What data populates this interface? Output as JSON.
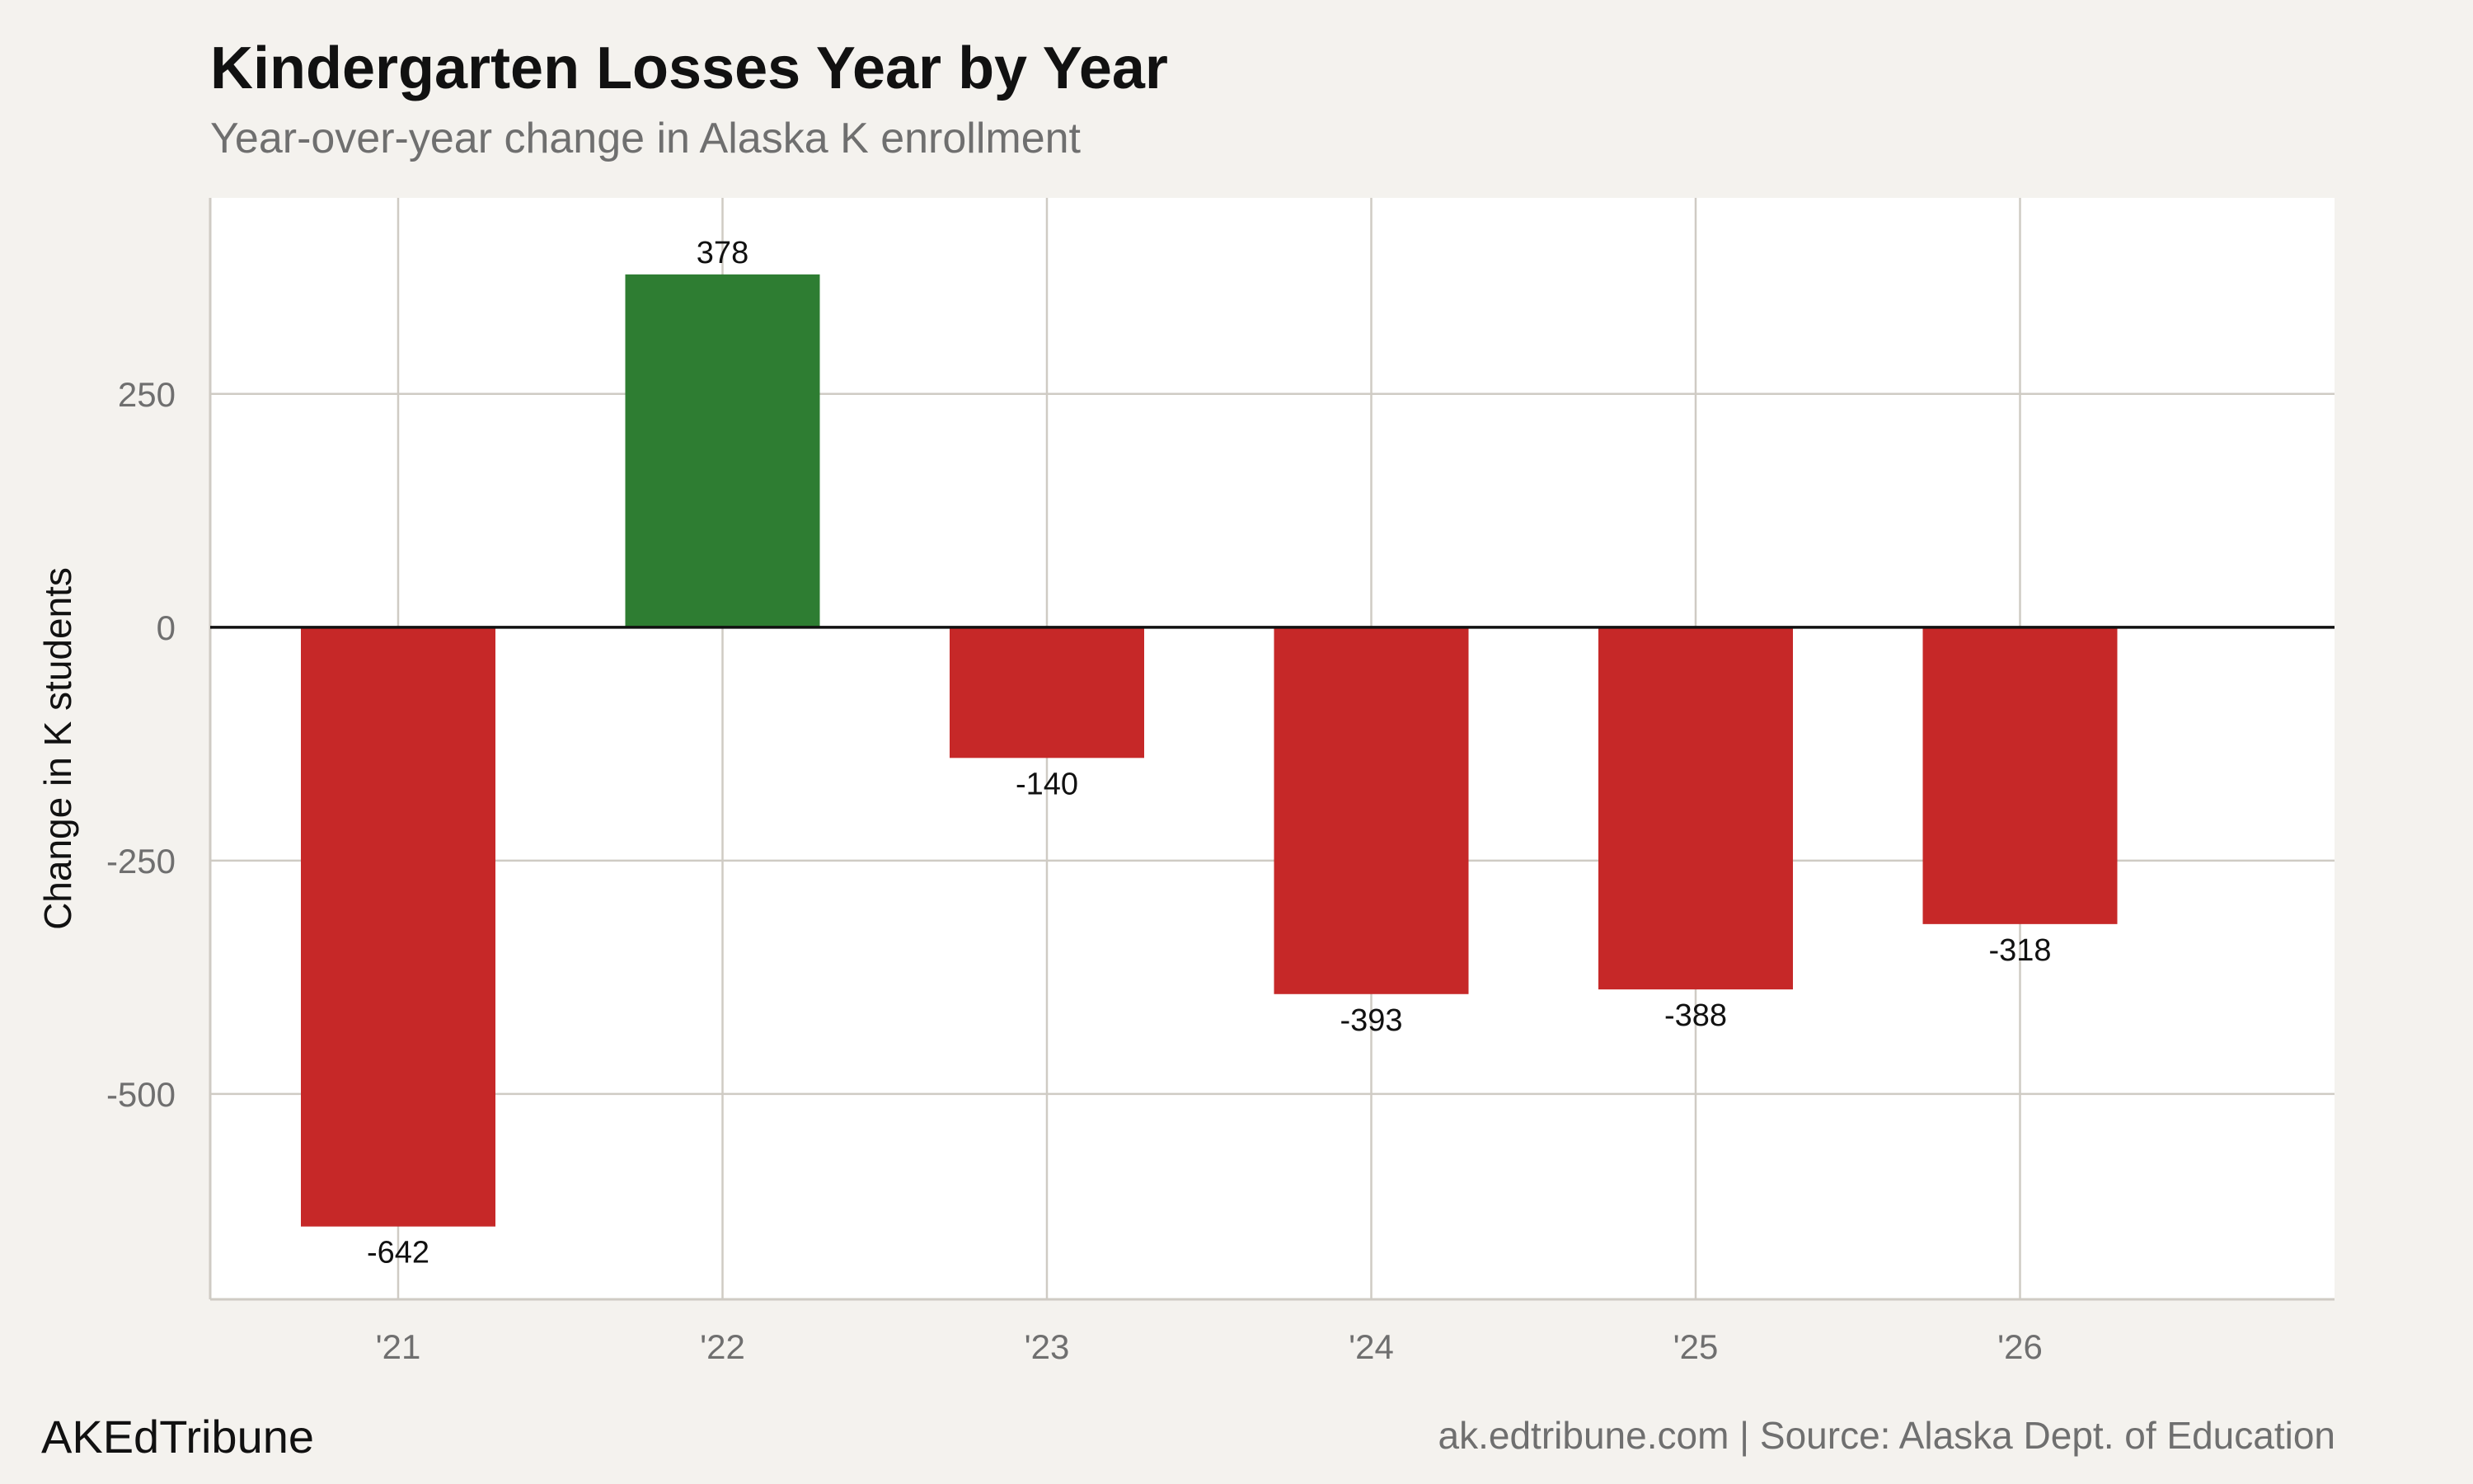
{
  "chart_data": {
    "type": "bar",
    "title": "Kindergarten Losses Year by Year",
    "subtitle": "Year-over-year change in Alaska K enrollment",
    "xlabel": "",
    "ylabel": "Change in K students",
    "categories": [
      "'21",
      "'22",
      "'23",
      "'24",
      "'25",
      "'26"
    ],
    "values": [
      -642,
      378,
      -140,
      -393,
      -388,
      -318
    ],
    "data_labels": [
      "-642",
      "378",
      "-140",
      "-393",
      "-388",
      "-318"
    ],
    "ylim": [
      -720,
      460
    ],
    "yticks": [
      250,
      0,
      -250,
      -500
    ],
    "ytick_labels": [
      "250",
      "0",
      "-250",
      "-500"
    ],
    "grid": true,
    "legend": "none",
    "colors": {
      "positive": "#2e7d32",
      "negative": "#c62828",
      "zero_line": "#111111",
      "grid": "#cfcbc4",
      "plot_background": "#ffffff",
      "page_background": "#f4f2ee"
    }
  },
  "footer": {
    "brand": "AKEdTribune",
    "source": "ak.edtribune.com | Source: Alaska Dept. of Education"
  }
}
